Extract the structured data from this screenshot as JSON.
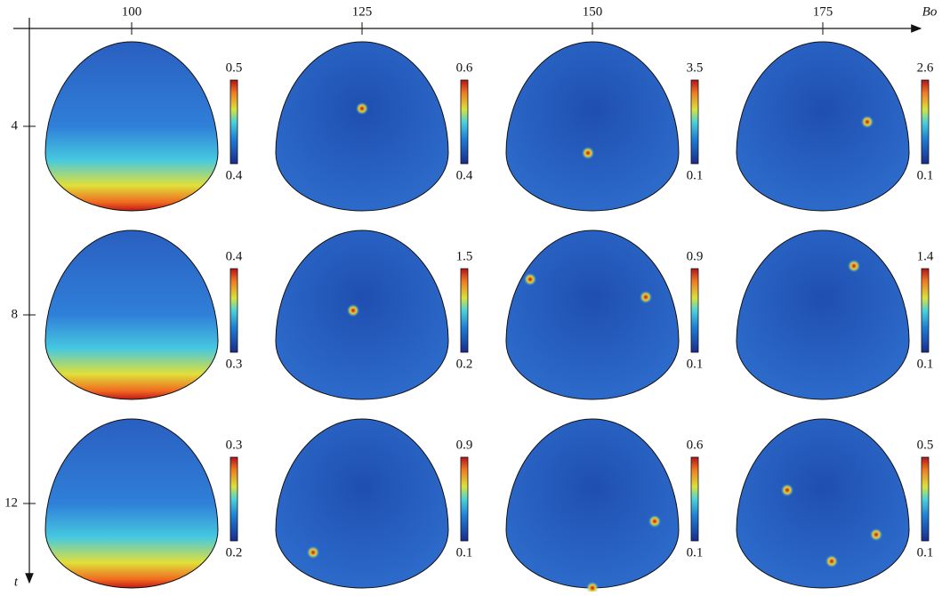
{
  "x_axis": {
    "label": "Bo",
    "ticks": [
      "100",
      "125",
      "150",
      "175"
    ]
  },
  "y_axis": {
    "label": "t",
    "ticks": [
      "4",
      "8",
      "12"
    ]
  },
  "panels": [
    [
      {
        "max": "0.5",
        "min": "0.4"
      },
      {
        "max": "0.6",
        "min": "0.4"
      },
      {
        "max": "3.5",
        "min": "0.1"
      },
      {
        "max": "2.6",
        "min": "0.1"
      }
    ],
    [
      {
        "max": "0.4",
        "min": "0.3"
      },
      {
        "max": "1.5",
        "min": "0.2"
      },
      {
        "max": "0.9",
        "min": "0.1"
      },
      {
        "max": "1.4",
        "min": "0.1"
      }
    ],
    [
      {
        "max": "0.3",
        "min": "0.2"
      },
      {
        "max": "0.9",
        "min": "0.1"
      },
      {
        "max": "0.6",
        "min": "0.1"
      },
      {
        "max": "0.5",
        "min": "0.1"
      }
    ]
  ]
}
